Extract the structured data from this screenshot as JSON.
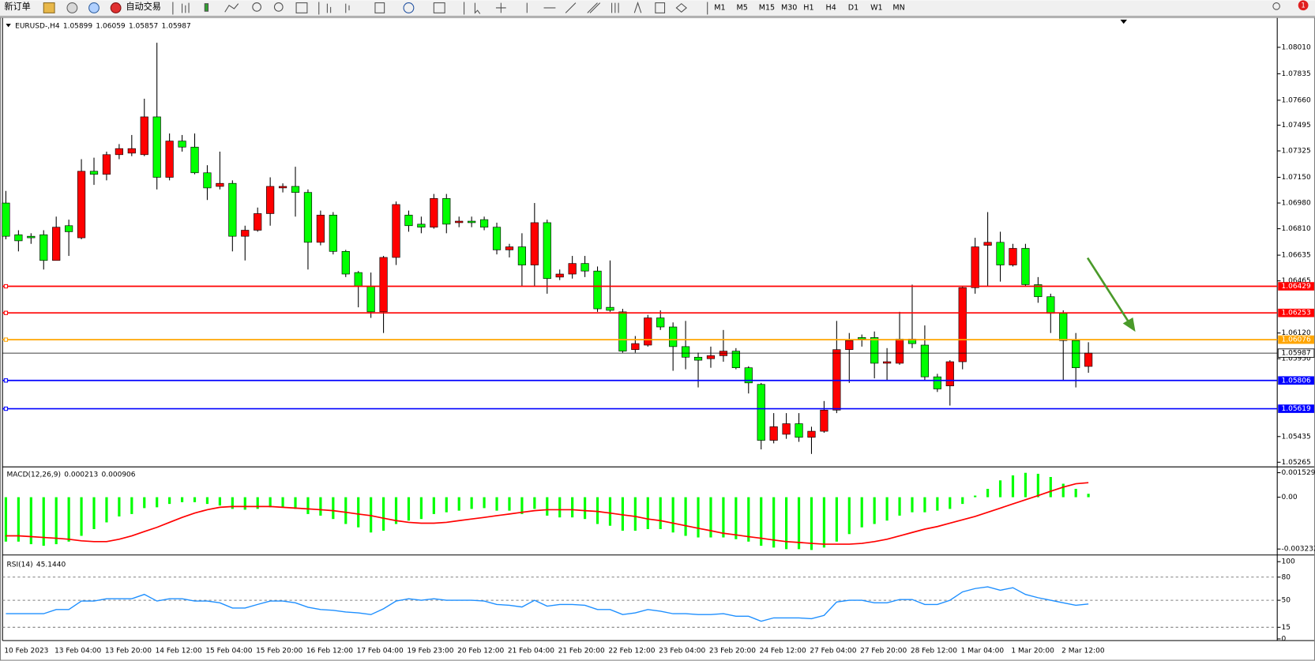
{
  "toolbar": {
    "new_order": "新订单",
    "auto_trading": "自动交易",
    "timeframes": [
      "M1",
      "M5",
      "M15",
      "M30",
      "H1",
      "H4",
      "D1",
      "W1",
      "MN"
    ],
    "notifications": 1
  },
  "chart_data": [
    {
      "type": "candlestick",
      "symbol": "EURUSD-,H4",
      "categories": [
        "10 Feb 2023",
        null,
        null,
        null,
        "13 Feb 04:00",
        null,
        null,
        null,
        "13 Feb 20:00",
        null,
        null,
        null,
        "14 Feb 12:00",
        null,
        null,
        null,
        "15 Feb 04:00",
        null,
        null,
        null,
        "15 Feb 20:00",
        null,
        null,
        null,
        "16 Feb 12:00",
        null,
        null,
        null,
        "17 Feb 04:00",
        null,
        null,
        null,
        "19 Feb 23:00",
        null,
        null,
        null,
        "20 Feb 12:00",
        null,
        null,
        null,
        "21 Feb 04:00",
        null,
        null,
        null,
        "21 Feb 20:00",
        null,
        null,
        null,
        "22 Feb 12:00",
        null,
        null,
        null,
        "23 Feb 04:00",
        null,
        null,
        null,
        "23 Feb 20:00",
        null,
        null,
        null,
        "24 Feb 12:00",
        null,
        null,
        null,
        "27 Feb 04:00",
        null,
        null,
        null,
        "27 Feb 20:00",
        null,
        null,
        null,
        "28 Feb 12:00",
        null,
        null,
        null,
        "1 Mar 04:00",
        null,
        null,
        null,
        "1 Mar 20:00",
        null,
        null,
        null,
        "2 Mar 12:00",
        null,
        null
      ],
      "open": [
        1.0698,
        1.0677,
        1.0676,
        1.0677,
        1.066,
        1.0683,
        1.0675,
        1.0719,
        1.0717,
        1.073,
        1.0731,
        1.073,
        1.0755,
        1.0715,
        1.0739,
        1.0735,
        1.0718,
        1.0709,
        1.0711,
        1.0676,
        1.068,
        1.0691,
        1.0708,
        1.0709,
        1.0705,
        1.0672,
        1.069,
        1.0666,
        1.0652,
        1.0643,
        1.0626,
        1.0662,
        1.069,
        1.0684,
        1.0682,
        1.0701,
        1.0685,
        1.0686,
        1.0687,
        1.0682,
        1.0667,
        1.0669,
        1.0657,
        1.0685,
        1.0649,
        1.0651,
        1.0658,
        1.0653,
        1.0629,
        1.0626,
        1.0601,
        1.0604,
        1.0622,
        1.0616,
        1.0603,
        1.0596,
        1.0595,
        1.0597,
        1.06,
        1.0589,
        1.0578,
        1.0541,
        1.0545,
        1.0552,
        1.0543,
        1.0547,
        1.0561,
        1.0601,
        1.0609,
        1.0609,
        1.0592,
        1.0592,
        1.0608,
        1.0604,
        1.0583,
        1.0577,
        1.0593,
        1.0642,
        1.067,
        1.0672,
        1.0657,
        1.0668,
        1.0644,
        1.0636,
        1.0625,
        1.0607,
        1.05899
      ],
      "high": [
        1.0706,
        1.068,
        1.0678,
        1.068,
        1.0689,
        1.0687,
        1.0727,
        1.0728,
        1.0732,
        1.0737,
        1.0743,
        1.0767,
        1.0804,
        1.0744,
        1.0743,
        1.0744,
        1.0723,
        1.0732,
        1.0713,
        1.0683,
        1.0695,
        1.0715,
        1.0711,
        1.0722,
        1.0707,
        1.0693,
        1.0692,
        1.0667,
        1.0653,
        1.0652,
        1.0663,
        1.0699,
        1.0693,
        1.0689,
        1.0704,
        1.0704,
        1.0689,
        1.0689,
        1.0689,
        1.0685,
        1.0671,
        1.0678,
        1.0698,
        1.0687,
        1.0654,
        1.0663,
        1.0663,
        1.0656,
        1.066,
        1.0628,
        1.061,
        1.0624,
        1.0627,
        1.0619,
        1.062,
        1.0599,
        1.0603,
        1.0614,
        1.0602,
        1.059,
        1.0579,
        1.0559,
        1.0559,
        1.0559,
        1.055,
        1.0567,
        1.062,
        1.0612,
        1.0611,
        1.0613,
        1.0602,
        1.0626,
        1.0644,
        1.0617,
        1.0585,
        1.0594,
        1.0643,
        1.0675,
        1.0692,
        1.0679,
        1.0671,
        1.0671,
        1.0649,
        1.0638,
        1.0627,
        1.0612,
        1.06059
      ],
      "low": [
        1.0674,
        1.0666,
        1.0671,
        1.0654,
        1.066,
        1.0663,
        1.0674,
        1.071,
        1.0713,
        1.0727,
        1.0729,
        1.0729,
        1.0707,
        1.0713,
        1.0732,
        1.0717,
        1.07,
        1.0707,
        1.0666,
        1.066,
        1.0679,
        1.0683,
        1.0705,
        1.0689,
        1.0654,
        1.067,
        1.0664,
        1.0649,
        1.0629,
        1.0622,
        1.0612,
        1.0657,
        1.0679,
        1.0678,
        1.0681,
        1.0678,
        1.0682,
        1.0682,
        1.068,
        1.0664,
        1.0662,
        1.0643,
        1.0643,
        1.0638,
        1.0647,
        1.0648,
        1.0649,
        1.0626,
        1.0626,
        1.0599,
        1.0599,
        1.0603,
        1.0614,
        1.0587,
        1.0588,
        1.0576,
        1.0589,
        1.0593,
        1.0588,
        1.0572,
        1.0535,
        1.0539,
        1.0542,
        1.054,
        1.0532,
        1.0546,
        1.0559,
        1.0579,
        1.0603,
        1.0582,
        1.0581,
        1.0591,
        1.0602,
        1.0581,
        1.0573,
        1.0564,
        1.0588,
        1.0638,
        1.0643,
        1.0646,
        1.0656,
        1.0643,
        1.0632,
        1.0612,
        1.0581,
        1.0576,
        1.05857
      ],
      "close": [
        1.0676,
        1.0673,
        1.0675,
        1.066,
        1.0682,
        1.0679,
        1.0719,
        1.0717,
        1.073,
        1.0734,
        1.0734,
        1.0755,
        1.0715,
        1.0739,
        1.0735,
        1.0718,
        1.0708,
        1.0711,
        1.0676,
        1.068,
        1.0691,
        1.0709,
        1.0709,
        1.0705,
        1.0672,
        1.069,
        1.0666,
        1.0651,
        1.0643,
        1.0626,
        1.0662,
        1.0697,
        1.0683,
        1.0682,
        1.0701,
        1.0684,
        1.0686,
        1.0685,
        1.0682,
        1.0667,
        1.0669,
        1.0657,
        1.0685,
        1.0648,
        1.0651,
        1.0658,
        1.0653,
        1.0628,
        1.0627,
        1.06,
        1.0605,
        1.0622,
        1.0616,
        1.0603,
        1.0596,
        1.0594,
        1.0597,
        1.06,
        1.0589,
        1.0579,
        1.0541,
        1.055,
        1.0552,
        1.0543,
        1.0547,
        1.0561,
        1.0601,
        1.0607,
        1.0608,
        1.0592,
        1.0593,
        1.0608,
        1.0605,
        1.0583,
        1.0575,
        1.0593,
        1.0642,
        1.0669,
        1.0672,
        1.0657,
        1.0668,
        1.0644,
        1.0636,
        1.0625,
        1.0607,
        1.0589,
        1.05987
      ],
      "up_color": "#ff0000",
      "down_color": "#00ff00",
      "ylim": [
        1.0524,
        1.0821
      ],
      "yticks": [
        {
          "value": 1.0801,
          "label": "1.08010"
        },
        1.07835,
        {
          "value": 1.0766,
          "label": "1.07660"
        },
        1.07495,
        1.07325,
        {
          "value": 1.0715,
          "label": "1.07150"
        },
        {
          "value": 1.0698,
          "label": "1.06980"
        },
        {
          "value": 1.0681,
          "label": "1.06810"
        },
        1.06635,
        1.06465,
        {
          "value": 1.0612,
          "label": "1.06120"
        },
        {
          "value": 1.0595,
          "label": "1.05950"
        },
        1.05435,
        1.05265
      ],
      "levels": [
        {
          "value": 1.06429,
          "color": "#ff0000"
        },
        {
          "value": 1.06253,
          "color": "#ff0000"
        },
        {
          "value": 1.06076,
          "color": "#ffa500"
        },
        {
          "value": 1.05806,
          "color": "#0000ff"
        },
        {
          "value": 1.05619,
          "color": "#0000ff"
        }
      ]
    },
    {
      "type": "macd",
      "title": "MACD(12,26,9)",
      "series": [
        {
          "color": "#00ff00",
          "values": [
            -0.00277,
            -0.00277,
            -0.00293,
            -0.00303,
            -0.00293,
            -0.00277,
            -0.00241,
            -0.00199,
            -0.00157,
            -0.0012,
            -0.00105,
            -0.00068,
            -0.00063,
            -0.00042,
            -0.00031,
            -0.00031,
            -0.00042,
            -0.00052,
            -0.00073,
            -0.00078,
            -0.00073,
            -0.00063,
            -0.00063,
            -0.00073,
            -0.00105,
            -0.00115,
            -0.00136,
            -0.00167,
            -0.00188,
            -0.0022,
            -0.00209,
            -0.00167,
            -0.00146,
            -0.00136,
            -0.00105,
            -0.00094,
            -0.00084,
            -0.00073,
            -0.00068,
            -0.00084,
            -0.00084,
            -0.00105,
            -0.00073,
            -0.00115,
            -0.00126,
            -0.00126,
            -0.00136,
            -0.00167,
            -0.00178,
            -0.00209,
            -0.00209,
            -0.00199,
            -0.00199,
            -0.0022,
            -0.00241,
            -0.00251,
            -0.00251,
            -0.00251,
            -0.00262,
            -0.00277,
            -0.00303,
            -0.00314,
            -0.00324,
            -0.00324,
            -0.00329,
            -0.00314,
            -0.00277,
            -0.0023,
            -0.00188,
            -0.00167,
            -0.00146,
            -0.00115,
            -0.00094,
            -0.00094,
            -0.00084,
            -0.00073,
            -0.00042,
            0.0001,
            0.00052,
            0.00105,
            0.00136,
            0.00152,
            0.00146,
            0.00126,
            0.00084,
            0.00052,
            0.000213
          ]
        },
        {
          "color": "#ff0000",
          "values": [
            -0.00241,
            -0.00241,
            -0.00246,
            -0.00251,
            -0.00256,
            -0.00262,
            -0.00272,
            -0.00277,
            -0.00277,
            -0.00262,
            -0.00241,
            -0.00214,
            -0.00188,
            -0.00157,
            -0.00126,
            -0.00099,
            -0.00078,
            -0.00063,
            -0.00058,
            -0.00058,
            -0.00058,
            -0.00058,
            -0.00063,
            -0.00068,
            -0.00073,
            -0.00078,
            -0.00084,
            -0.00094,
            -0.00105,
            -0.00115,
            -0.00131,
            -0.00146,
            -0.00157,
            -0.00162,
            -0.00162,
            -0.00157,
            -0.00146,
            -0.00136,
            -0.00126,
            -0.00115,
            -0.00105,
            -0.00094,
            -0.00084,
            -0.00078,
            -0.00078,
            -0.00078,
            -0.00084,
            -0.00089,
            -0.00099,
            -0.0011,
            -0.0012,
            -0.00136,
            -0.00146,
            -0.00162,
            -0.00178,
            -0.00194,
            -0.00209,
            -0.00225,
            -0.00235,
            -0.00246,
            -0.00256,
            -0.00267,
            -0.00277,
            -0.00282,
            -0.00288,
            -0.00293,
            -0.00293,
            -0.00293,
            -0.00288,
            -0.00277,
            -0.00262,
            -0.00241,
            -0.0022,
            -0.00199,
            -0.00183,
            -0.00162,
            -0.00141,
            -0.0012,
            -0.00094,
            -0.00068,
            -0.00042,
            -0.00016,
            0.0001,
            0.00037,
            0.00063,
            0.00084,
            0.000906
          ]
        }
      ],
      "ylim": [
        -0.00355,
        0.00184
      ],
      "yticks": [
        0.001529,
        {
          "value": 0,
          "label": "0.00"
        },
        -0.003232
      ]
    },
    {
      "type": "line",
      "title": "RSI(14)",
      "current": {
        "value": 45.144,
        "label": "45.1440"
      },
      "color": "#1e8fff",
      "values": [
        32.6,
        32.6,
        32.6,
        32.6,
        38,
        38,
        49,
        49,
        52,
        52,
        52,
        57.6,
        49,
        52,
        52,
        49,
        49,
        46.7,
        40,
        40,
        44.6,
        49,
        49,
        46.7,
        41,
        38,
        37,
        34.8,
        33.7,
        31.5,
        39,
        49,
        52,
        50,
        52,
        50,
        50,
        50,
        49,
        44.6,
        43.5,
        41.3,
        50,
        42.4,
        44.6,
        44.6,
        43.5,
        38,
        38,
        31.5,
        33.7,
        38,
        35.9,
        32.6,
        32.6,
        31.5,
        31.5,
        32.6,
        29.3,
        29.3,
        22.8,
        27.2,
        27.2,
        27.2,
        26.1,
        30.4,
        47.8,
        50,
        50,
        46.7,
        46.7,
        51,
        51,
        44.6,
        44.6,
        50,
        60.9,
        65.2,
        67.4,
        63,
        66.3,
        57.6,
        53.3,
        50,
        46.7,
        43.5,
        45.144
      ],
      "ylim": [
        0,
        100
      ],
      "yticks": [
        100,
        80,
        50,
        15,
        0
      ]
    }
  ]
}
